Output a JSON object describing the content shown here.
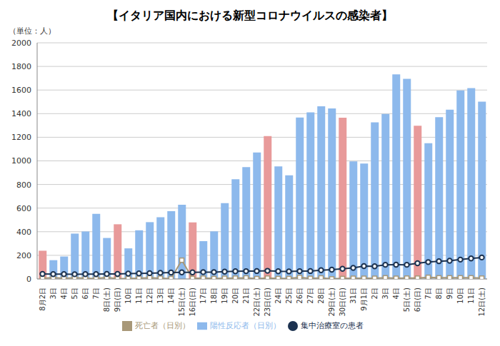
{
  "chart_data": {
    "type": "bar",
    "title": "【イタリア国内における新型コロナウイルスの感染者】",
    "subtitle": "（単位：人）",
    "categories": [
      "8月2日",
      "3日",
      "4日",
      "5日",
      "6日",
      "7日",
      "8日(土)",
      "9日(日)",
      "10日",
      "11日",
      "12日",
      "13日",
      "14日",
      "15日(土)",
      "16日(日)",
      "17日",
      "18日",
      "19日",
      "20日",
      "21日",
      "22日(土)",
      "23日(日)",
      "24日",
      "25日",
      "26日",
      "27日",
      "28日",
      "29日(土)",
      "30日(日)",
      "31日",
      "9月1日",
      "2日",
      "3日",
      "4日",
      "5日(土)",
      "6日(日)",
      "7日",
      "8日",
      "9日",
      "10日",
      "11日",
      "12日(土)"
    ],
    "series": [
      {
        "name": "陽性反応者（日別）",
        "type": "bar",
        "color": "#8db9ec",
        "colors": [
          "#e89a9a",
          "#8db9ec",
          "#8db9ec",
          "#8db9ec",
          "#8db9ec",
          "#8db9ec",
          "#8db9ec",
          "#e89a9a",
          "#8db9ec",
          "#8db9ec",
          "#8db9ec",
          "#8db9ec",
          "#8db9ec",
          "#8db9ec",
          "#e89a9a",
          "#8db9ec",
          "#8db9ec",
          "#8db9ec",
          "#8db9ec",
          "#8db9ec",
          "#8db9ec",
          "#e89a9a",
          "#8db9ec",
          "#8db9ec",
          "#8db9ec",
          "#8db9ec",
          "#8db9ec",
          "#8db9ec",
          "#e89a9a",
          "#8db9ec",
          "#8db9ec",
          "#8db9ec",
          "#8db9ec",
          "#8db9ec",
          "#8db9ec",
          "#e89a9a",
          "#8db9ec",
          "#8db9ec",
          "#8db9ec",
          "#8db9ec",
          "#8db9ec",
          "#8db9ec"
        ],
        "values": [
          239,
          159,
          190,
          384,
          402,
          552,
          347,
          463,
          259,
          412,
          481,
          523,
          574,
          629,
          479,
          320,
          403,
          642,
          845,
          947,
          1071,
          1210,
          953,
          878,
          1367,
          1411,
          1462,
          1444,
          1365,
          996,
          978,
          1326,
          1397,
          1733,
          1695,
          1297,
          1150,
          1370,
          1434,
          1597,
          1616,
          1501
        ]
      },
      {
        "name": "死亡者（日別）",
        "type": "line",
        "color": "#a89878",
        "marker": "square",
        "values": [
          5,
          12,
          5,
          10,
          6,
          3,
          13,
          2,
          4,
          6,
          10,
          6,
          3,
          159,
          4,
          7,
          4,
          6,
          7,
          9,
          3,
          7,
          4,
          4,
          13,
          5,
          9,
          1,
          4,
          6,
          6,
          6,
          10,
          6,
          7,
          7,
          14,
          10,
          10,
          10,
          10,
          7
        ]
      },
      {
        "name": "集中治療室の患者",
        "type": "line",
        "color": "#1c3250",
        "marker": "circle",
        "values": [
          42,
          41,
          41,
          40,
          41,
          41,
          42,
          42,
          45,
          47,
          49,
          52,
          54,
          56,
          56,
          58,
          58,
          62,
          65,
          66,
          67,
          69,
          65,
          64,
          66,
          67,
          74,
          79,
          86,
          94,
          109,
          107,
          120,
          121,
          120,
          133,
          143,
          150,
          154,
          164,
          174,
          182
        ]
      }
    ],
    "ylim": [
      0,
      2000
    ],
    "yticks": [
      0,
      200,
      400,
      600,
      800,
      1000,
      1200,
      1400,
      1600,
      1800,
      2000
    ],
    "grid": true,
    "legend": "bottom"
  }
}
